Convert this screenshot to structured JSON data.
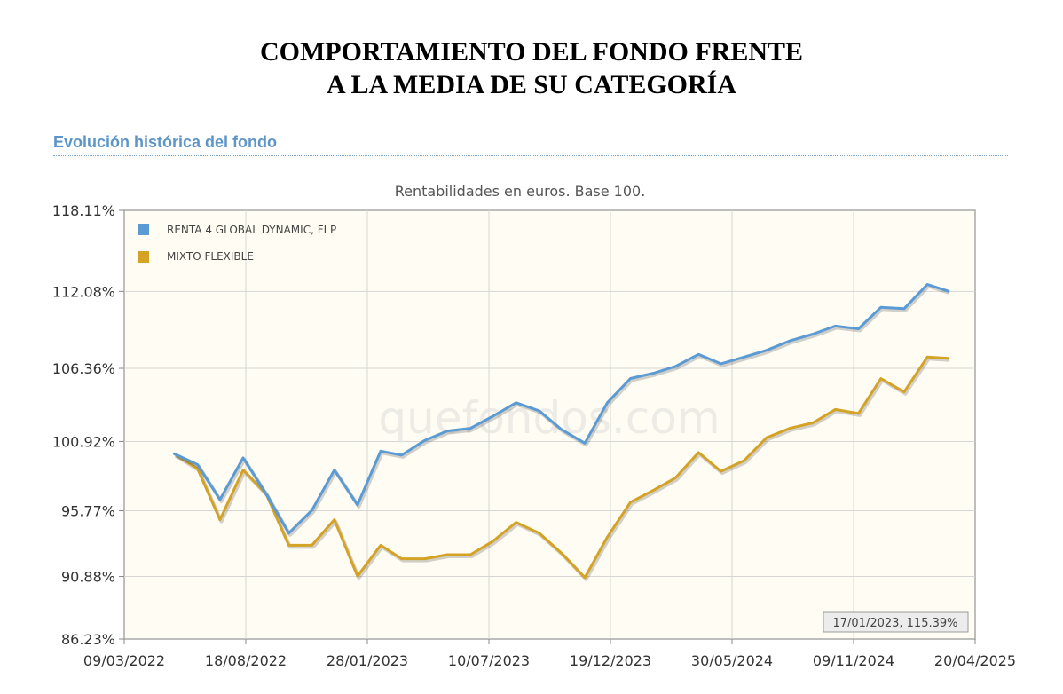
{
  "document": {
    "title_line1": "COMPORTAMIENTO DEL FONDO FRENTE",
    "title_line2": "A LA MEDIA DE SU CATEGORÍA"
  },
  "section": {
    "heading": "Evolución histórica del fondo"
  },
  "watermark": "quefondos.com",
  "chart_data": {
    "type": "line",
    "title": "Rentabilidades en euros. Base 100.",
    "x_axis": {
      "type": "date",
      "range": [
        "2022-03-09",
        "2025-04-20"
      ],
      "tick_labels": [
        "09/03/2022",
        "18/08/2022",
        "28/01/2023",
        "10/07/2023",
        "19/12/2023",
        "30/05/2024",
        "09/11/2024",
        "20/04/2025"
      ]
    },
    "y_axis": {
      "range": [
        86.23,
        118.11
      ],
      "tick_values": [
        86.23,
        90.88,
        95.77,
        100.92,
        106.36,
        112.08,
        118.11
      ],
      "tick_labels": [
        "86.23%",
        "90.88%",
        "95.77%",
        "100.92%",
        "106.36%",
        "112.08%",
        "118.11%"
      ]
    },
    "grid": true,
    "legend_position": "top-left",
    "tooltip": "17/01/2023, 115.39%",
    "x": [
      "2022-05-15",
      "2022-06-15",
      "2022-07-15",
      "2022-08-15",
      "2022-09-15",
      "2022-10-15",
      "2022-11-15",
      "2022-12-15",
      "2023-01-15",
      "2023-02-15",
      "2023-03-15",
      "2023-04-15",
      "2023-05-15",
      "2023-06-15",
      "2023-07-15",
      "2023-08-15",
      "2023-09-15",
      "2023-10-15",
      "2023-11-15",
      "2023-12-15",
      "2024-01-15",
      "2024-02-15",
      "2024-03-15",
      "2024-04-15",
      "2024-05-15",
      "2024-06-15",
      "2024-07-15",
      "2024-08-15",
      "2024-09-15",
      "2024-10-15",
      "2024-11-15",
      "2024-12-15",
      "2025-01-15",
      "2025-02-15",
      "2025-03-15"
    ],
    "series": [
      {
        "name": "RENTA 4 GLOBAL DYNAMIC, FI P",
        "color": "#5b9bd5",
        "values": [
          100.0,
          99.2,
          96.6,
          99.7,
          97.0,
          94.1,
          95.8,
          98.8,
          96.2,
          100.2,
          99.9,
          101.0,
          101.7,
          101.9,
          102.8,
          103.8,
          103.2,
          101.8,
          100.8,
          103.8,
          105.6,
          106.0,
          106.5,
          107.4,
          106.7,
          107.2,
          107.7,
          108.4,
          108.9,
          109.5,
          109.3,
          110.9,
          110.8,
          112.6,
          112.1
        ]
      },
      {
        "name": "MIXTO FLEXIBLE",
        "color": "#d4a326",
        "values": [
          100.0,
          98.9,
          95.1,
          98.8,
          97.0,
          93.2,
          93.2,
          95.1,
          90.9,
          93.2,
          92.2,
          92.2,
          92.5,
          92.5,
          93.5,
          94.9,
          94.1,
          92.6,
          90.8,
          93.8,
          96.4,
          97.3,
          98.2,
          100.1,
          98.7,
          99.5,
          101.2,
          101.9,
          102.3,
          103.3,
          103.0,
          105.6,
          104.6,
          107.2,
          107.1
        ]
      }
    ]
  }
}
